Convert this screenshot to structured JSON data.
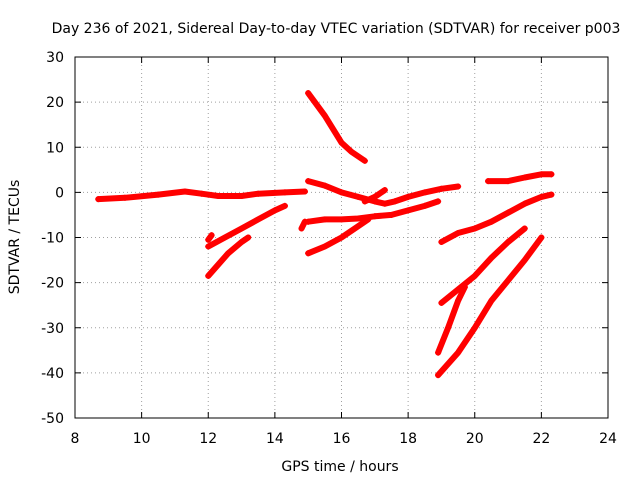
{
  "chart_data": {
    "type": "scatter",
    "title": "Day 236 of 2021, Sidereal Day-to-day VTEC variation (SDTVAR) for receiver p003",
    "xlabel": "GPS time / hours",
    "ylabel": "SDTVAR / TECUs",
    "xlim": [
      8,
      24
    ],
    "ylim": [
      -50,
      30
    ],
    "xticks": [
      8,
      10,
      12,
      14,
      16,
      18,
      20,
      22,
      24
    ],
    "yticks": [
      -50,
      -40,
      -30,
      -20,
      -10,
      0,
      10,
      20,
      30
    ],
    "grid": true,
    "marker": "+",
    "color": "#ff0000",
    "series": [
      {
        "values": [
          [
            8.7,
            -1.5
          ],
          [
            9.5,
            -1.2
          ],
          [
            10.5,
            -0.5
          ],
          [
            11.3,
            0.2
          ],
          [
            11.8,
            -0.3
          ],
          [
            12.3,
            -0.8
          ],
          [
            13.0,
            -0.8
          ],
          [
            13.5,
            -0.3
          ],
          [
            14.3,
            0.0
          ],
          [
            14.9,
            0.2
          ]
        ]
      },
      {
        "values": [
          [
            15.0,
            22.0
          ],
          [
            15.5,
            17.0
          ],
          [
            16.0,
            11.0
          ],
          [
            16.3,
            9.0
          ],
          [
            16.7,
            7.0
          ]
        ]
      },
      {
        "values": [
          [
            15.0,
            2.5
          ],
          [
            15.5,
            1.5
          ],
          [
            16.0,
            0.0
          ],
          [
            16.5,
            -1.0
          ],
          [
            17.0,
            -2.0
          ],
          [
            17.3,
            -2.5
          ],
          [
            17.6,
            -2.0
          ],
          [
            18.0,
            -1.0
          ],
          [
            18.5,
            0.0
          ],
          [
            19.0,
            0.8
          ],
          [
            19.5,
            1.3
          ]
        ]
      },
      {
        "values": [
          [
            15.0,
            -6.5
          ],
          [
            15.5,
            -6.0
          ],
          [
            16.0,
            -6.0
          ],
          [
            16.5,
            -5.8
          ],
          [
            17.0,
            -5.3
          ],
          [
            17.5,
            -5.0
          ],
          [
            18.0,
            -4.0
          ],
          [
            18.5,
            -3.0
          ],
          [
            18.9,
            -2.0
          ]
        ]
      },
      {
        "values": [
          [
            16.7,
            -2.0
          ],
          [
            17.0,
            -1.0
          ],
          [
            17.3,
            0.5
          ]
        ]
      },
      {
        "values": [
          [
            15.0,
            -13.5
          ],
          [
            15.5,
            -12.0
          ],
          [
            16.0,
            -10.0
          ],
          [
            16.4,
            -8.0
          ],
          [
            16.8,
            -6.0
          ]
        ]
      },
      {
        "values": [
          [
            12.0,
            -12.0
          ],
          [
            12.5,
            -10.0
          ],
          [
            13.0,
            -8.0
          ],
          [
            13.5,
            -6.0
          ],
          [
            14.0,
            -4.0
          ],
          [
            14.3,
            -3.0
          ]
        ]
      },
      {
        "values": [
          [
            12.0,
            -10.5
          ],
          [
            12.1,
            -9.5
          ]
        ]
      },
      {
        "values": [
          [
            12.0,
            -18.5
          ],
          [
            12.3,
            -16.0
          ],
          [
            12.6,
            -13.5
          ],
          [
            13.0,
            -11.0
          ],
          [
            13.2,
            -10.0
          ]
        ]
      },
      {
        "values": [
          [
            14.8,
            -8.0
          ],
          [
            14.9,
            -6.5
          ]
        ]
      },
      {
        "values": [
          [
            20.4,
            2.5
          ],
          [
            21.0,
            2.5
          ],
          [
            21.5,
            3.3
          ],
          [
            22.0,
            4.0
          ],
          [
            22.3,
            4.0
          ]
        ]
      },
      {
        "values": [
          [
            19.0,
            -11.0
          ],
          [
            19.5,
            -9.0
          ],
          [
            20.0,
            -8.0
          ],
          [
            20.5,
            -6.5
          ],
          [
            21.0,
            -4.5
          ],
          [
            21.5,
            -2.5
          ],
          [
            22.0,
            -1.0
          ],
          [
            22.3,
            -0.5
          ]
        ]
      },
      {
        "values": [
          [
            19.0,
            -24.5
          ],
          [
            19.5,
            -21.5
          ],
          [
            20.0,
            -18.5
          ],
          [
            20.5,
            -14.5
          ],
          [
            21.0,
            -11.0
          ],
          [
            21.5,
            -8.0
          ]
        ]
      },
      {
        "values": [
          [
            18.9,
            -35.5
          ],
          [
            19.2,
            -30.0
          ],
          [
            19.5,
            -24.0
          ],
          [
            19.7,
            -21.0
          ]
        ]
      },
      {
        "values": [
          [
            18.9,
            -40.5
          ],
          [
            19.5,
            -35.5
          ],
          [
            20.0,
            -30.0
          ],
          [
            20.5,
            -24.0
          ],
          [
            21.0,
            -19.5
          ],
          [
            21.5,
            -15.0
          ],
          [
            22.0,
            -10.0
          ]
        ]
      }
    ]
  }
}
